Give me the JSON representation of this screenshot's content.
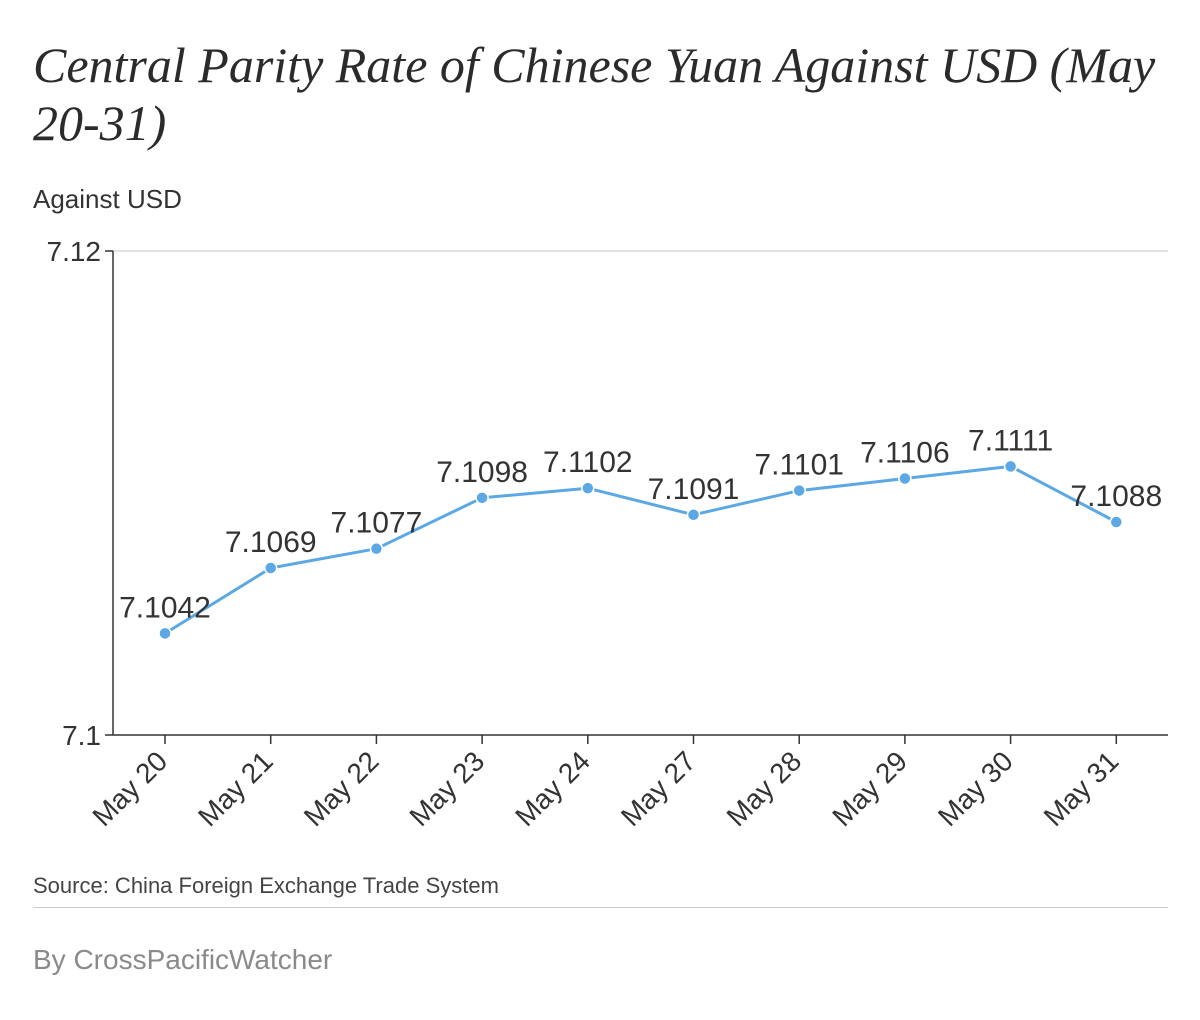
{
  "chart_data": {
    "type": "line",
    "title": "Central Parity Rate of Chinese Yuan Against USD (May 20-31)",
    "ylabel": "Against USD",
    "xlabel": "",
    "categories": [
      "May 20",
      "May 21",
      "May 22",
      "May 23",
      "May 24",
      "May 27",
      "May 28",
      "May 29",
      "May 30",
      "May 31"
    ],
    "series": [
      {
        "values": [
          7.1042,
          7.1069,
          7.1077,
          7.1098,
          7.1102,
          7.1091,
          7.1101,
          7.1106,
          7.1111,
          7.1088
        ]
      }
    ],
    "data_labels": [
      "7.1042",
      "7.1069",
      "7.1077",
      "7.1098",
      "7.1102",
      "7.1091",
      "7.1101",
      "7.1106",
      "7.1111",
      "7.1088"
    ],
    "ylim": [
      7.1,
      7.12
    ],
    "yticks": [
      "7.1",
      "7.12"
    ],
    "grid": "top line only",
    "legend": "none",
    "colors": {
      "line": "#5ba8e5",
      "axis": "#333333",
      "grid": "#d9d9d9"
    }
  },
  "footer": {
    "source": "Source:  China Foreign Exchange Trade System",
    "byline": "By CrossPacificWatcher"
  }
}
